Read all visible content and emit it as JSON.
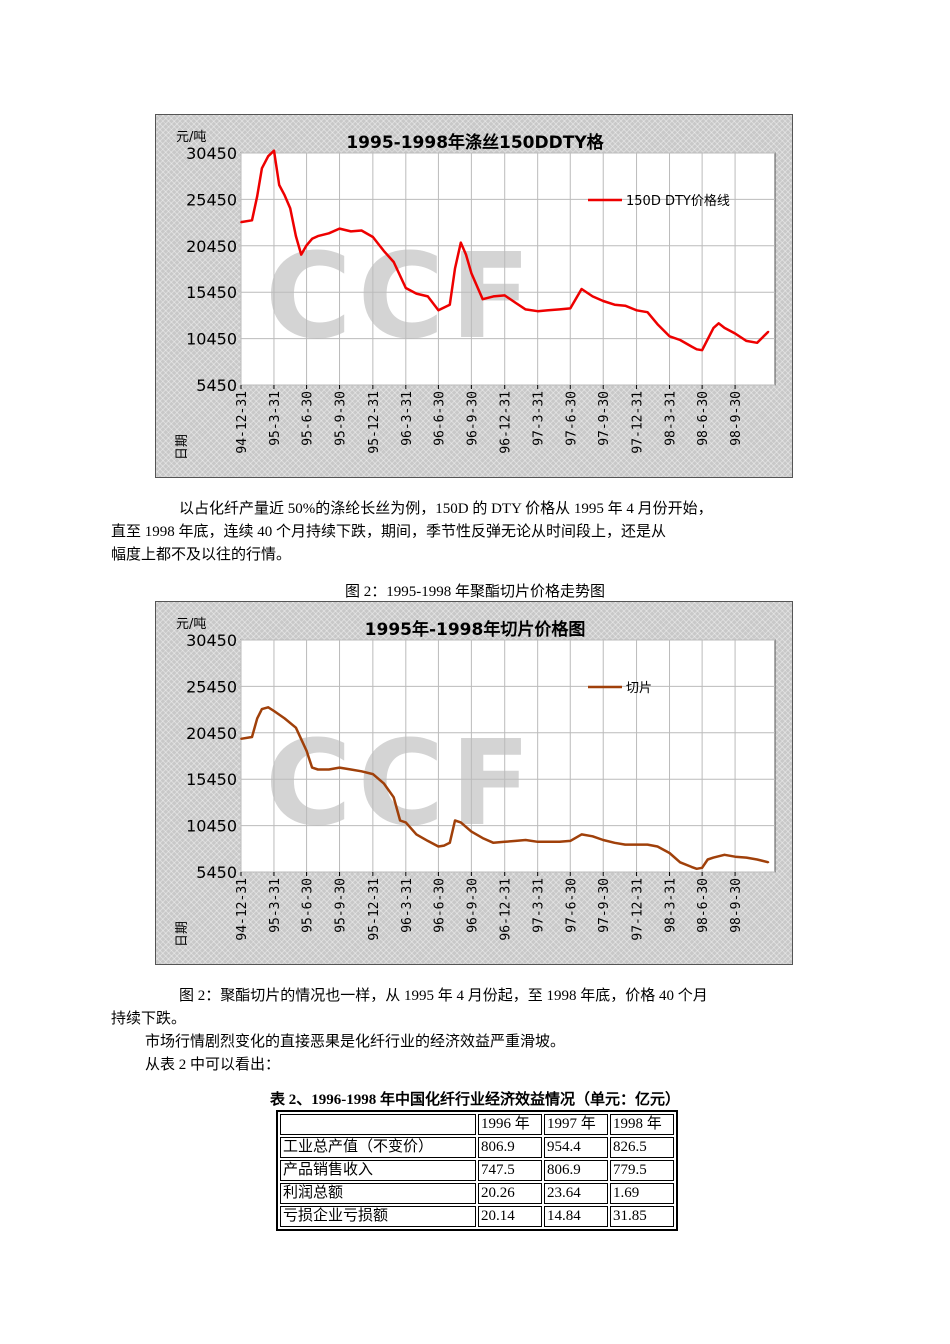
{
  "charts": [
    {
      "id": "chart1",
      "title": "1995-1998年涤丝150DDTY格",
      "unit_label": "元/吨",
      "date_label": "日期",
      "legend": "150D DTY价格线",
      "line_color": "#ee0000",
      "watermark": "CCF"
    },
    {
      "id": "chart2",
      "title": "1995年-1998年切片价格图",
      "unit_label": "元/吨",
      "date_label": "日期",
      "legend": "切片",
      "line_color": "#a0400a",
      "watermark": "CCF"
    }
  ],
  "chart_data": [
    {
      "type": "line",
      "title": "1995-1998年涤丝150DDTY格",
      "ylabel": "元/吨",
      "xlabel": "日期",
      "ylim": [
        5450,
        30450
      ],
      "yticks": [
        30450,
        25450,
        20450,
        15450,
        10450,
        5450
      ],
      "xticks": [
        "94-12-31",
        "95-3-31",
        "95-6-30",
        "95-9-30",
        "95-12-31",
        "96-3-31",
        "96-6-30",
        "96-9-30",
        "96-12-31",
        "97-3-31",
        "97-6-30",
        "97-9-30",
        "97-12-31",
        "98-3-31",
        "98-6-30",
        "98-9-30"
      ],
      "grid": true,
      "legend_position": "top-right",
      "series": [
        {
          "name": "150D DTY价格线",
          "x": [
            "94-12-31",
            "95-1-31",
            "95-2-15",
            "95-2-28",
            "95-3-15",
            "95-3-31",
            "95-4-15",
            "95-4-30",
            "95-5-15",
            "95-5-31",
            "95-6-15",
            "95-6-30",
            "95-7-15",
            "95-7-31",
            "95-8-31",
            "95-9-30",
            "95-10-31",
            "95-11-30",
            "95-12-31",
            "96-1-31",
            "96-2-28",
            "96-3-31",
            "96-4-30",
            "96-5-31",
            "96-6-30",
            "96-7-31",
            "96-8-15",
            "96-8-31",
            "96-9-15",
            "96-9-30",
            "96-10-31",
            "96-11-30",
            "96-12-31",
            "97-1-31",
            "97-2-28",
            "97-3-31",
            "97-4-30",
            "97-5-31",
            "97-6-30",
            "97-7-31",
            "97-8-31",
            "97-9-30",
            "97-10-31",
            "97-11-30",
            "97-12-31",
            "98-1-31",
            "98-2-28",
            "98-3-31",
            "98-4-30",
            "98-5-31",
            "98-6-15",
            "98-6-30",
            "98-7-31",
            "98-8-15",
            "98-8-31",
            "98-9-30",
            "98-10-31",
            "98-11-30",
            "98-12-31"
          ],
          "values": [
            23000,
            23200,
            25800,
            28800,
            30100,
            30700,
            27000,
            25900,
            24500,
            21500,
            19500,
            20500,
            21200,
            21500,
            21800,
            22300,
            22000,
            22100,
            21400,
            19900,
            18700,
            15900,
            15300,
            15000,
            13500,
            14100,
            18000,
            20800,
            19500,
            17500,
            14700,
            15000,
            15100,
            14300,
            13600,
            13400,
            13500,
            13600,
            13700,
            15800,
            15000,
            14500,
            14100,
            14000,
            13500,
            13300,
            12000,
            10700,
            10300,
            9600,
            9300,
            9200,
            11600,
            12100,
            11600,
            11000,
            10200,
            10000,
            11200
          ]
        }
      ]
    },
    {
      "type": "line",
      "title": "1995年-1998年切片价格图",
      "ylabel": "元/吨",
      "xlabel": "日期",
      "ylim": [
        5450,
        30450
      ],
      "yticks": [
        30450,
        25450,
        20450,
        15450,
        10450,
        5450
      ],
      "xticks": [
        "94-12-31",
        "95-3-31",
        "95-6-30",
        "95-9-30",
        "95-12-31",
        "96-3-31",
        "96-6-30",
        "96-9-30",
        "96-12-31",
        "97-3-31",
        "97-6-30",
        "97-9-30",
        "97-12-31",
        "98-3-31",
        "98-6-30",
        "98-9-30"
      ],
      "grid": true,
      "legend_position": "top-right",
      "series": [
        {
          "name": "切片",
          "x": [
            "94-12-31",
            "95-1-31",
            "95-2-15",
            "95-2-28",
            "95-3-15",
            "95-3-31",
            "95-4-30",
            "95-5-31",
            "95-6-30",
            "95-7-15",
            "95-7-31",
            "95-8-31",
            "95-9-30",
            "95-10-31",
            "95-11-30",
            "95-12-31",
            "96-1-31",
            "96-2-28",
            "96-3-15",
            "96-3-31",
            "96-4-30",
            "96-5-31",
            "96-6-30",
            "96-7-15",
            "96-7-31",
            "96-8-15",
            "96-8-31",
            "96-9-30",
            "96-10-31",
            "96-11-30",
            "96-12-31",
            "97-1-31",
            "97-2-28",
            "97-3-31",
            "97-4-30",
            "97-5-31",
            "97-6-30",
            "97-7-31",
            "97-8-31",
            "97-9-30",
            "97-10-31",
            "97-11-30",
            "97-12-31",
            "98-1-31",
            "98-2-28",
            "98-3-31",
            "98-4-30",
            "98-5-31",
            "98-6-15",
            "98-6-30",
            "98-7-15",
            "98-7-31",
            "98-8-31",
            "98-9-30",
            "98-10-31",
            "98-11-30",
            "98-12-31"
          ],
          "values": [
            19800,
            20000,
            22000,
            23000,
            23200,
            22800,
            22000,
            21000,
            18500,
            16700,
            16500,
            16500,
            16700,
            16500,
            16300,
            16000,
            15000,
            13500,
            11000,
            10800,
            9500,
            8800,
            8200,
            8300,
            8600,
            11000,
            10800,
            9800,
            9100,
            8600,
            8700,
            8800,
            8900,
            8700,
            8700,
            8700,
            8800,
            9500,
            9300,
            8900,
            8600,
            8400,
            8400,
            8400,
            8200,
            7500,
            6500,
            6000,
            5800,
            5900,
            6800,
            7000,
            7300,
            7100,
            7000,
            6800,
            6500
          ]
        }
      ]
    }
  ],
  "paragraphs": {
    "p1_line1": "以占化纤产量近 50%的涤纶长丝为例，150D 的 DTY 价格从 1995 年 4 月份开始，",
    "p1_line2": "直至 1998 年底，连续 40 个月持续下跌，期间，季节性反弹无论从时间段上，还是从",
    "p1_line3": "幅度上都不及以往的行情。",
    "fig2_caption": "图 2：1995-1998 年聚酯切片价格走势图",
    "p2_line1": "图 2：聚酯切片的情况也一样，从 1995 年 4 月份起，至 1998 年底，价格 40 个月",
    "p2_line2": "持续下跌。",
    "p3": "市场行情剧烈变化的直接恶果是化纤行业的经济效益严重滑坡。",
    "p4": "从表 2 中可以看出："
  },
  "table": {
    "title": "表 2、1996-1998 年中国化纤行业经济效益情况（单元：亿元）",
    "headers": [
      "",
      "1996 年",
      "1997 年",
      "1998 年"
    ],
    "rows": [
      [
        "工业总产值（不变价）",
        "806.9",
        "954.4",
        "826.5"
      ],
      [
        "产品销售收入",
        "747.5",
        "806.9",
        "779.5"
      ],
      [
        "利润总额",
        "20.26",
        "23.64",
        "1.69"
      ],
      [
        "亏损企业亏损额",
        "20.14",
        "14.84",
        "31.85"
      ]
    ]
  }
}
